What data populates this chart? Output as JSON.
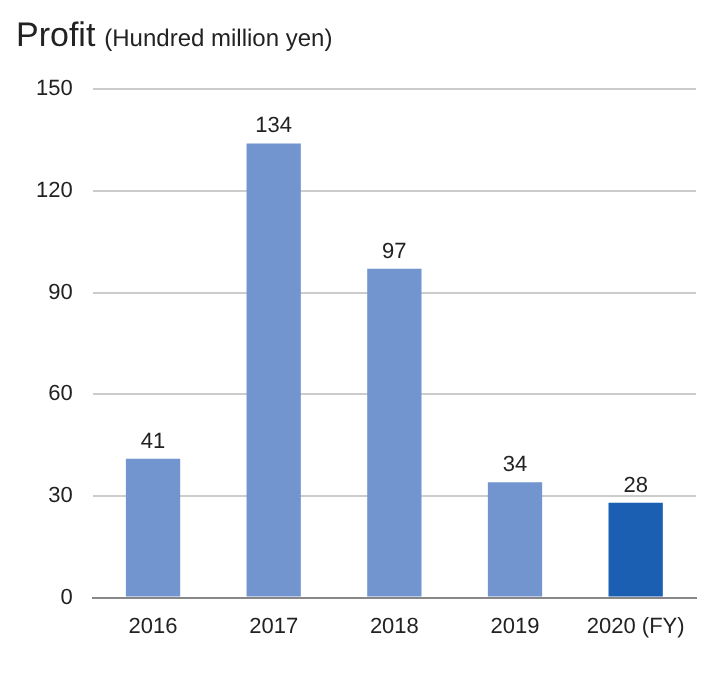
{
  "chart_data": {
    "type": "bar",
    "title": "Profit",
    "subtitle": "(Hundred million yen)",
    "categories": [
      "2016",
      "2017",
      "2018",
      "2019",
      "2020 (FY)"
    ],
    "values": [
      41,
      134,
      97,
      34,
      28
    ],
    "colors": [
      "#7295d0",
      "#7295d0",
      "#7295d0",
      "#7295d0",
      "#1b5fb2"
    ],
    "ylim": [
      0,
      150
    ],
    "yticks": [
      0,
      30,
      60,
      90,
      120,
      150
    ],
    "grid": "y",
    "data_labels": true
  }
}
